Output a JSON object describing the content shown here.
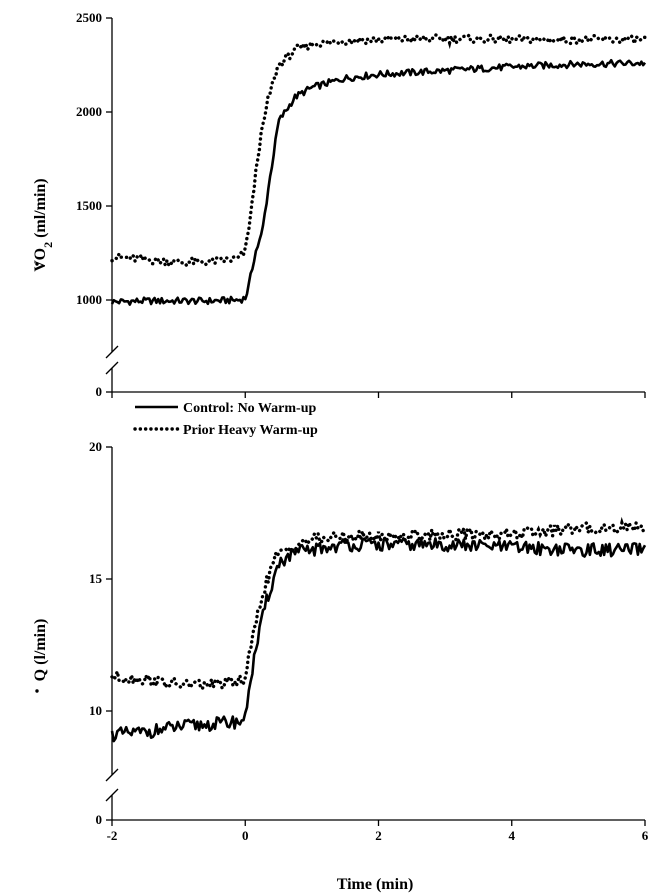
{
  "chart_data": [
    {
      "type": "line",
      "panel": "top",
      "ylabel": {
        "prefix": "V",
        "main": "O",
        "sub": "2",
        "unit": " (ml/min)"
      },
      "yticks": [
        0,
        1000,
        1500,
        2000,
        2500
      ],
      "axis_break": true,
      "ylim": [
        0,
        2500
      ],
      "xlim": [
        -2,
        6
      ],
      "series": [
        {
          "name": "Control: No Warm-up",
          "style": "solid",
          "points": [
            [
              -2,
              990
            ],
            [
              -1.5,
              995
            ],
            [
              -1,
              995
            ],
            [
              -0.5,
              995
            ],
            [
              -0.1,
              1000
            ],
            [
              0,
              1010
            ],
            [
              0.05,
              1070
            ],
            [
              0.15,
              1250
            ],
            [
              0.25,
              1350
            ],
            [
              0.35,
              1600
            ],
            [
              0.5,
              1950
            ],
            [
              0.75,
              2080
            ],
            [
              1.0,
              2130
            ],
            [
              1.5,
              2180
            ],
            [
              2.0,
              2200
            ],
            [
              3.0,
              2220
            ],
            [
              4.0,
              2240
            ],
            [
              5.0,
              2255
            ],
            [
              6.0,
              2260
            ]
          ]
        },
        {
          "name": "Prior Heavy Warm-up",
          "style": "dotted",
          "points": [
            [
              -2,
              1230
            ],
            [
              -1.5,
              1215
            ],
            [
              -1,
              1200
            ],
            [
              -0.5,
              1205
            ],
            [
              -0.1,
              1220
            ],
            [
              0,
              1260
            ],
            [
              0.1,
              1500
            ],
            [
              0.2,
              1800
            ],
            [
              0.35,
              2080
            ],
            [
              0.5,
              2250
            ],
            [
              0.75,
              2330
            ],
            [
              1.0,
              2360
            ],
            [
              1.5,
              2380
            ],
            [
              2.0,
              2385
            ],
            [
              3.0,
              2390
            ],
            [
              4.0,
              2385
            ],
            [
              5.0,
              2385
            ],
            [
              6.0,
              2385
            ]
          ]
        }
      ]
    },
    {
      "type": "line",
      "panel": "bottom",
      "ylabel": {
        "prefix": "",
        "main": "Q",
        "sub": "",
        "unit": " (l/min)"
      },
      "yticks": [
        0,
        10,
        15,
        20
      ],
      "axis_break": true,
      "ylim": [
        0,
        20
      ],
      "xlim": [
        -2,
        6
      ],
      "xticks": [
        -2,
        0,
        2,
        4,
        6
      ],
      "xlabel": "Time (min)",
      "series": [
        {
          "name": "Control: No Warm-up",
          "style": "solid",
          "points": [
            [
              -2,
              9.1
            ],
            [
              -1.5,
              9.2
            ],
            [
              -1,
              9.4
            ],
            [
              -0.5,
              9.5
            ],
            [
              -0.1,
              9.6
            ],
            [
              0,
              9.7
            ],
            [
              0.05,
              10.8
            ],
            [
              0.15,
              12.2
            ],
            [
              0.3,
              14.0
            ],
            [
              0.5,
              15.6
            ],
            [
              0.75,
              16.0
            ],
            [
              1.0,
              16.1
            ],
            [
              1.5,
              16.3
            ],
            [
              2.0,
              16.3
            ],
            [
              3.0,
              16.3
            ],
            [
              4.0,
              16.2
            ],
            [
              5.0,
              16.1
            ],
            [
              6.0,
              16.1
            ]
          ]
        },
        {
          "name": "Prior Heavy Warm-up",
          "style": "dotted",
          "points": [
            [
              -2,
              11.3
            ],
            [
              -1.5,
              11.2
            ],
            [
              -1,
              11.0
            ],
            [
              -0.5,
              11.0
            ],
            [
              -0.1,
              11.1
            ],
            [
              0,
              11.3
            ],
            [
              0.1,
              12.6
            ],
            [
              0.25,
              14.4
            ],
            [
              0.45,
              15.8
            ],
            [
              0.75,
              16.3
            ],
            [
              1.0,
              16.5
            ],
            [
              1.5,
              16.6
            ],
            [
              2.0,
              16.6
            ],
            [
              3.0,
              16.7
            ],
            [
              4.0,
              16.7
            ],
            [
              5.0,
              16.9
            ],
            [
              6.0,
              17.0
            ]
          ]
        }
      ]
    }
  ],
  "legend": {
    "entries": [
      {
        "label": "Control: No Warm-up",
        "style": "solid"
      },
      {
        "label": "Prior Heavy Warm-up",
        "style": "dotted"
      }
    ]
  }
}
